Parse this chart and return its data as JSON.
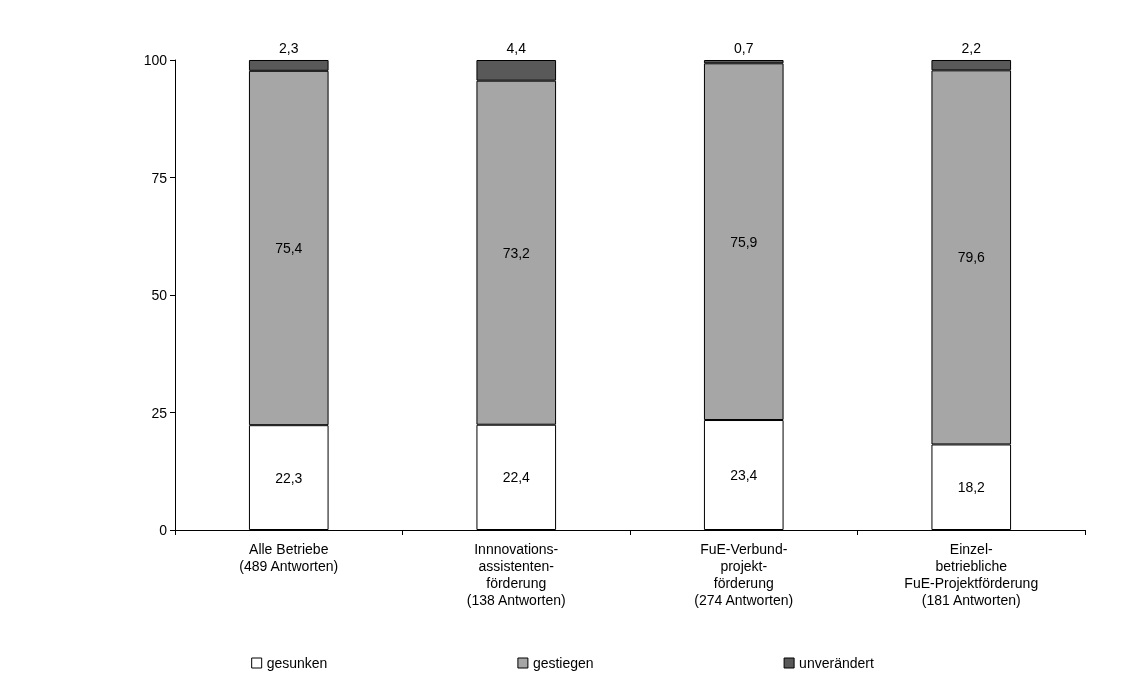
{
  "chart_data": {
    "type": "bar",
    "stacked": true,
    "categories": [
      "Alle Betriebe\n(489 Antworten)",
      "Innnovations-\nassistenten-\nförderung\n(138 Antworten)",
      "FuE-Verbund-\nprojekt-\nförderung\n(274 Antworten)",
      "Einzel-\nbetriebliche\nFuE-Projektförderung\n(181 Antworten)"
    ],
    "series": [
      {
        "name": "gesunken",
        "color": "#ffffff",
        "values": [
          22.3,
          22.4,
          23.4,
          18.2
        ],
        "value_labels": [
          "22,3",
          "22,4",
          "23,4",
          "18,2"
        ]
      },
      {
        "name": "gestiegen",
        "color": "#a6a6a6",
        "values": [
          75.4,
          73.2,
          75.9,
          79.6
        ],
        "value_labels": [
          "75,4",
          "73,2",
          "75,9",
          "79,6"
        ]
      },
      {
        "name": "unverändert",
        "color": "#595959",
        "values": [
          2.3,
          4.4,
          0.7,
          2.2
        ],
        "value_labels": [
          "2,3",
          "4,4",
          "0,7",
          "2,2"
        ]
      }
    ],
    "ylim": [
      0,
      100
    ],
    "yticks": [
      0,
      25,
      50,
      75,
      100
    ],
    "grid": false,
    "legend": "bottom"
  }
}
